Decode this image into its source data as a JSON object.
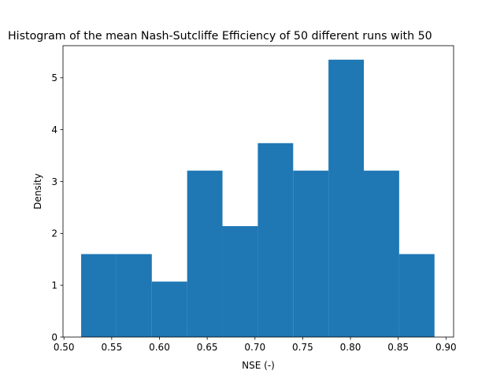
{
  "chart_data": {
    "type": "bar",
    "title": "Histogram of the mean Nash-Sutcliffe Efficiency of 50 different runs with 50",
    "xlabel": "NSE (-)",
    "ylabel": "Density",
    "xlim": [
      0.499,
      0.908
    ],
    "ylim": [
      0,
      5.62
    ],
    "grid": false,
    "bar_color": "#1f77b4",
    "bins": [
      {
        "x0": 0.518,
        "x1": 0.555,
        "density": 1.6
      },
      {
        "x0": 0.555,
        "x1": 0.592,
        "density": 1.6
      },
      {
        "x0": 0.592,
        "x1": 0.629,
        "density": 1.07
      },
      {
        "x0": 0.629,
        "x1": 0.666,
        "density": 3.21
      },
      {
        "x0": 0.666,
        "x1": 0.703,
        "density": 2.14
      },
      {
        "x0": 0.703,
        "x1": 0.74,
        "density": 3.74
      },
      {
        "x0": 0.74,
        "x1": 0.777,
        "density": 3.21
      },
      {
        "x0": 0.777,
        "x1": 0.814,
        "density": 5.35
      },
      {
        "x0": 0.814,
        "x1": 0.851,
        "density": 3.21
      },
      {
        "x0": 0.851,
        "x1": 0.888,
        "density": 1.6
      }
    ],
    "xticks": [
      {
        "value": 0.5,
        "label": "0.50"
      },
      {
        "value": 0.55,
        "label": "0.55"
      },
      {
        "value": 0.6,
        "label": "0.60"
      },
      {
        "value": 0.65,
        "label": "0.65"
      },
      {
        "value": 0.7,
        "label": "0.70"
      },
      {
        "value": 0.75,
        "label": "0.75"
      },
      {
        "value": 0.8,
        "label": "0.80"
      },
      {
        "value": 0.85,
        "label": "0.85"
      },
      {
        "value": 0.9,
        "label": "0.90"
      }
    ],
    "yticks": [
      {
        "value": 0,
        "label": "0"
      },
      {
        "value": 1,
        "label": "1"
      },
      {
        "value": 2,
        "label": "2"
      },
      {
        "value": 3,
        "label": "3"
      },
      {
        "value": 4,
        "label": "4"
      },
      {
        "value": 5,
        "label": "5"
      }
    ]
  }
}
